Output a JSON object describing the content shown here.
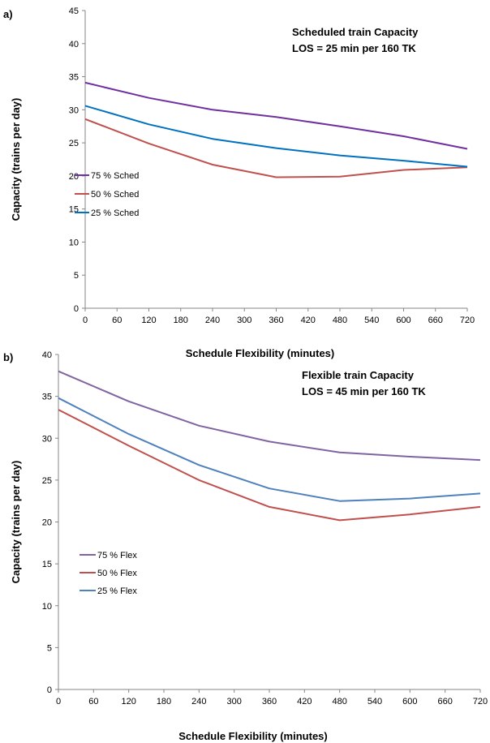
{
  "chart_data": [
    {
      "type": "line",
      "panel_label": "a)",
      "annotation": [
        "Scheduled train Capacity",
        "LOS = 25 min per 160 TK"
      ],
      "xlabel": "Schedule Flexibility (minutes)",
      "ylabel": "Capacity (trains per day)",
      "x": [
        0,
        120,
        240,
        360,
        480,
        600,
        720
      ],
      "xticks": [
        0,
        60,
        120,
        180,
        240,
        300,
        360,
        420,
        480,
        540,
        600,
        660,
        720
      ],
      "xlim": [
        0,
        720
      ],
      "ylim": [
        0,
        45
      ],
      "yticks": [
        0,
        5,
        10,
        15,
        20,
        25,
        30,
        35,
        40,
        45
      ],
      "grid": false,
      "legend_position": "middle-left",
      "series": [
        {
          "name": "75 % Sched",
          "color": "#7030A0",
          "values": [
            34.1,
            31.8,
            30.0,
            28.9,
            27.5,
            26.0,
            24.1
          ]
        },
        {
          "name": "50 % Sched",
          "color": "#C0504D",
          "values": [
            28.6,
            24.9,
            21.7,
            19.8,
            19.9,
            20.9,
            21.3
          ]
        },
        {
          "name": "25 % Sched",
          "color": "#0070C0",
          "values": [
            30.6,
            27.8,
            25.6,
            24.2,
            23.1,
            22.3,
            21.4
          ]
        }
      ]
    },
    {
      "type": "line",
      "panel_label": "b)",
      "annotation": [
        "Flexible train Capacity",
        "LOS = 45 min per 160 TK"
      ],
      "xlabel": "Schedule Flexibility (minutes)",
      "ylabel": "Capacity (trains per day)",
      "x": [
        0,
        120,
        240,
        360,
        480,
        600,
        720
      ],
      "xticks": [
        0,
        60,
        120,
        180,
        240,
        300,
        360,
        420,
        480,
        540,
        600,
        660,
        720
      ],
      "xlim": [
        0,
        720
      ],
      "ylim": [
        0,
        40
      ],
      "yticks": [
        0,
        5,
        10,
        15,
        20,
        25,
        30,
        35,
        40
      ],
      "grid": false,
      "legend_position": "middle-left",
      "series": [
        {
          "name": "75 % Flex",
          "color": "#8064A2",
          "values": [
            38.0,
            34.4,
            31.5,
            29.6,
            28.3,
            27.8,
            27.4
          ]
        },
        {
          "name": "50 % Flex",
          "color": "#C0504D",
          "values": [
            33.4,
            29.1,
            25.0,
            21.8,
            20.2,
            20.9,
            21.8
          ]
        },
        {
          "name": "25 % Flex",
          "color": "#4F81BD",
          "values": [
            34.8,
            30.5,
            26.8,
            24.0,
            22.5,
            22.8,
            23.4
          ]
        }
      ]
    }
  ]
}
